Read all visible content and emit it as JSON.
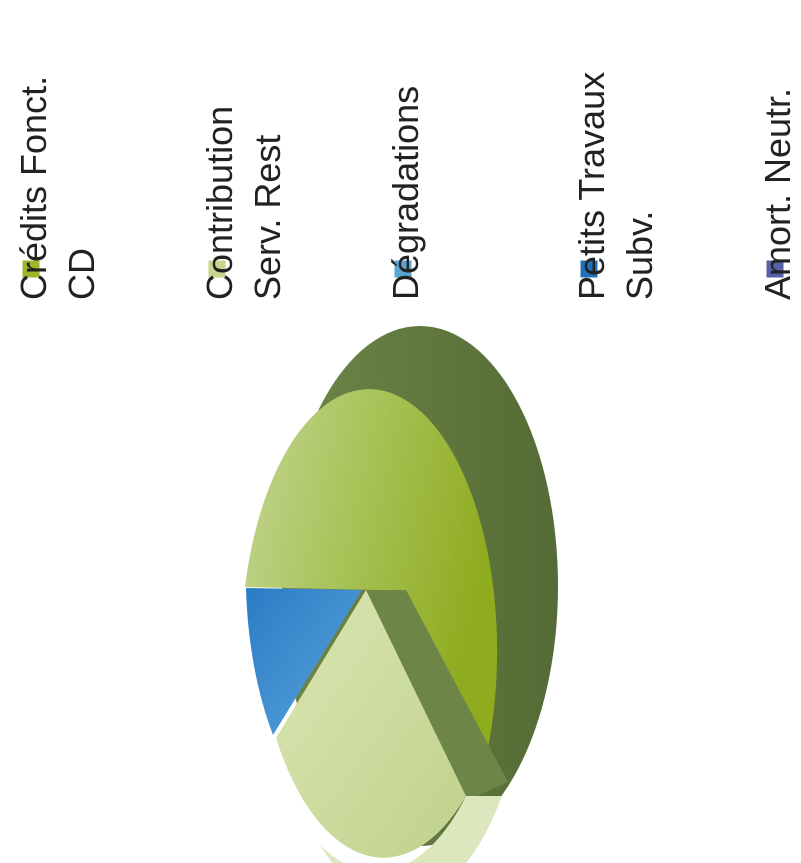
{
  "chart_data": {
    "type": "pie",
    "style": "3d",
    "orientation": "rotated 90° counter-clockwise",
    "categories": [
      "Crédits Fonct. CD",
      "Contribution Serv. Rest",
      "Dégradations",
      "Petits Travaux Subv.",
      "Amort. Neutr."
    ],
    "legend": [
      {
        "lines": [
          "Crédits Fonct.",
          "CD"
        ],
        "color": "#9fb52a"
      },
      {
        "lines": [
          "Contribution",
          "Serv. Rest"
        ],
        "color": "#c7d58d"
      },
      {
        "lines": [
          "Dégradations"
        ],
        "color": "#58a6cf"
      },
      {
        "lines": [
          "Petits Travaux",
          "Subv."
        ],
        "color": "#1f72b8"
      },
      {
        "lines": [
          "Amort. Neutr."
        ],
        "color": "#5660a6"
      }
    ],
    "values": [
      73,
      17,
      0,
      10,
      0
    ],
    "unit": "%",
    "legend_position": "top",
    "colors": {
      "top_light": "#c4d594",
      "top_mid": "#a9c45b",
      "top_dark": "#8fab1e",
      "side": "#6d8647",
      "side_dark": "#546b35",
      "contribution_face": "#cbdb9e",
      "contribution_side": "#dde7bd",
      "petits_face": "#3f8fcf"
    }
  }
}
